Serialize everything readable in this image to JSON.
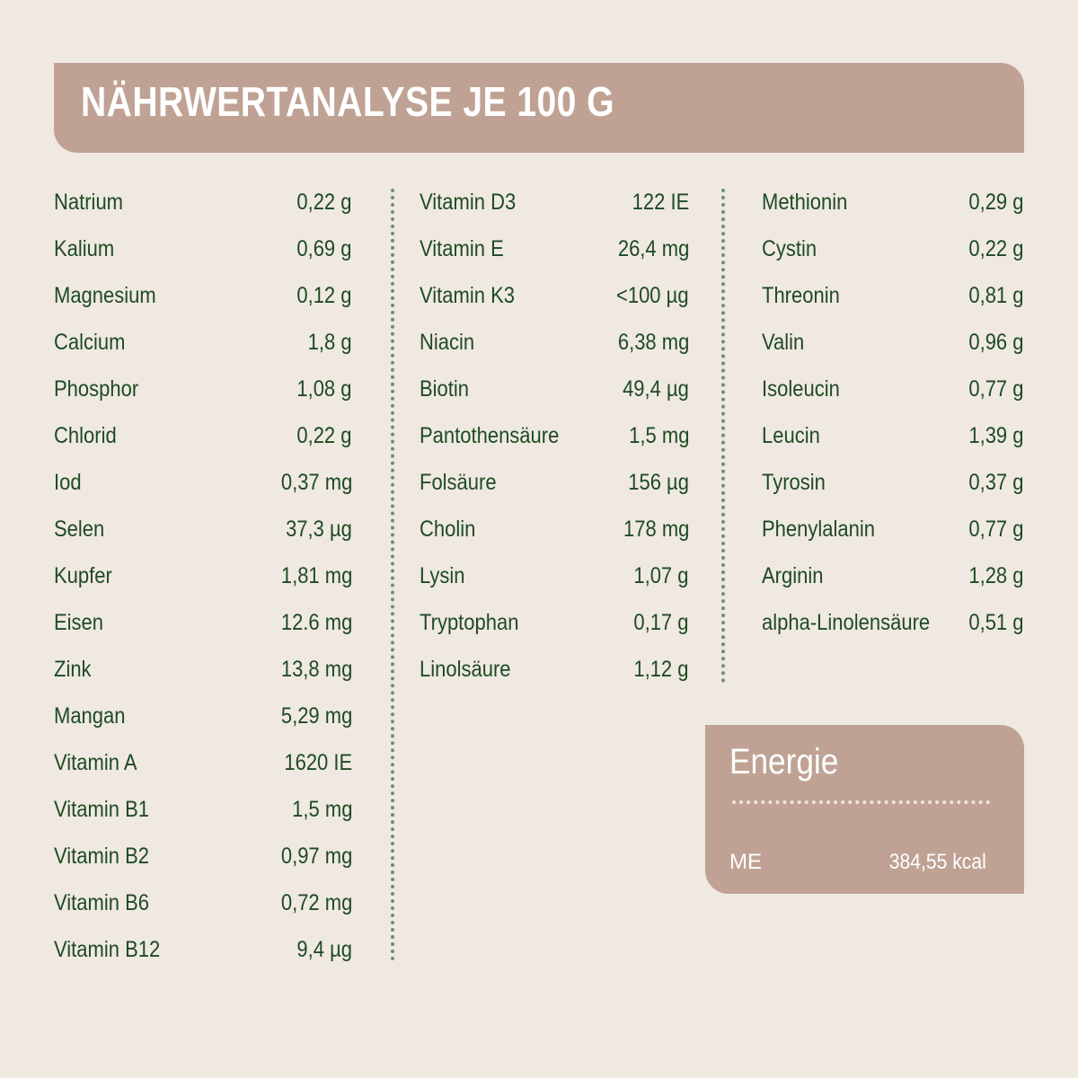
{
  "header": {
    "title": "NÄHRWERTANALYSE JE 100 G"
  },
  "columns": [
    {
      "rows": [
        [
          "Natrium",
          "0,22 g"
        ],
        [
          "Kalium",
          "0,69 g"
        ],
        [
          "Magnesium",
          "0,12 g"
        ],
        [
          "Calcium",
          "1,8 g"
        ],
        [
          "Phosphor",
          "1,08 g"
        ],
        [
          "Chlorid",
          "0,22 g"
        ],
        [
          "Iod",
          "0,37 mg"
        ],
        [
          "Selen",
          "37,3 µg"
        ],
        [
          "Kupfer",
          "1,81 mg"
        ],
        [
          "Eisen",
          "12.6 mg"
        ],
        [
          "Zink",
          "13,8 mg"
        ],
        [
          "Mangan",
          "5,29 mg"
        ],
        [
          "Vitamin A",
          "1620 IE"
        ],
        [
          "Vitamin B1",
          "1,5 mg"
        ],
        [
          "Vitamin B2",
          "0,97 mg"
        ],
        [
          "Vitamin B6",
          "0,72 mg"
        ],
        [
          "Vitamin B12",
          "9,4 µg"
        ]
      ]
    },
    {
      "rows": [
        [
          "Vitamin D3",
          "122 IE"
        ],
        [
          "Vitamin E",
          "26,4 mg"
        ],
        [
          "Vitamin K3",
          "<100 µg"
        ],
        [
          "Niacin",
          "6,38 mg"
        ],
        [
          "Biotin",
          "49,4 µg"
        ],
        [
          "Pantothensäure",
          "1,5 mg"
        ],
        [
          "Folsäure",
          "156 µg"
        ],
        [
          "Cholin",
          "178 mg"
        ],
        [
          "Lysin",
          "1,07 g"
        ],
        [
          "Tryptophan",
          "0,17 g"
        ],
        [
          "Linolsäure",
          "1,12 g"
        ]
      ]
    },
    {
      "rows": [
        [
          "Methionin",
          "0,29 g"
        ],
        [
          "Cystin",
          "0,22 g"
        ],
        [
          "Threonin",
          "0,81 g"
        ],
        [
          "Valin",
          "0,96 g"
        ],
        [
          "Isoleucin",
          "0,77 g"
        ],
        [
          "Leucin",
          "1,39 g"
        ],
        [
          "Tyrosin",
          "0,37 g"
        ],
        [
          "Phenylalanin",
          "0,77 g"
        ],
        [
          "Arginin",
          "1,28 g"
        ],
        [
          "alpha-Linolensäure",
          "0,51 g"
        ]
      ]
    }
  ],
  "energy": {
    "title": "Energie",
    "rows": [
      [
        "ME",
        "384,55 kcal"
      ]
    ]
  }
}
